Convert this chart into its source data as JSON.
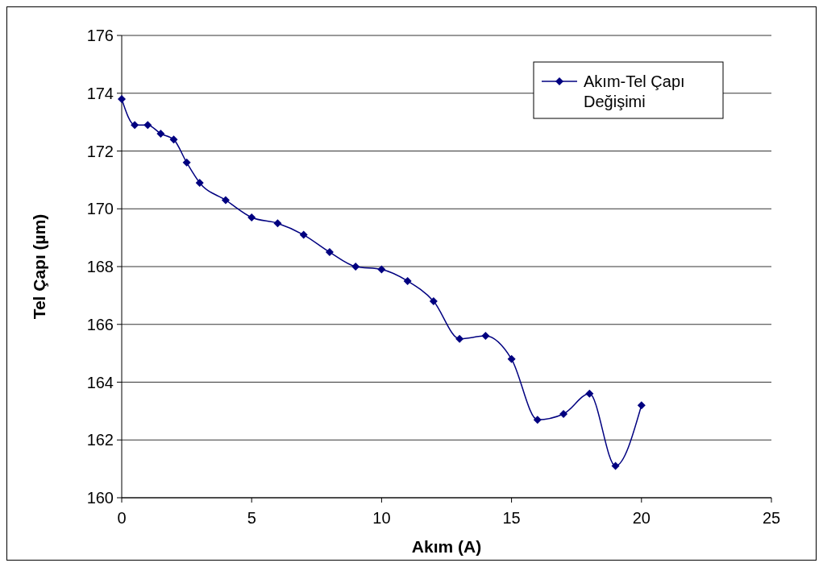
{
  "chart_data": {
    "type": "line",
    "xlabel": "Akım (A)",
    "ylabel": "Tel Çapı (µm)",
    "x": [
      0,
      0.5,
      1,
      1.5,
      2,
      2.5,
      3,
      4,
      5,
      6,
      7,
      8,
      9,
      10,
      11,
      12,
      13,
      14,
      15,
      16,
      17,
      18,
      19,
      20
    ],
    "series": [
      {
        "name": "Akım-Tel Çapı Değişimi",
        "color": "#000080",
        "values": [
          173.8,
          172.9,
          172.9,
          172.6,
          172.4,
          171.6,
          170.9,
          170.3,
          169.7,
          169.5,
          169.1,
          168.5,
          168.0,
          167.9,
          167.5,
          166.8,
          165.5,
          165.6,
          164.8,
          162.7,
          162.9,
          163.6,
          161.1,
          163.2
        ]
      }
    ],
    "xlim": [
      0,
      25
    ],
    "xticks": [
      0,
      5,
      10,
      15,
      20,
      25
    ],
    "ylim": [
      160,
      176
    ],
    "yticks": [
      160,
      162,
      164,
      166,
      168,
      170,
      172,
      174,
      176
    ],
    "grid": "y",
    "legend": "top right",
    "marker": "diamond",
    "line_style": "solid"
  }
}
